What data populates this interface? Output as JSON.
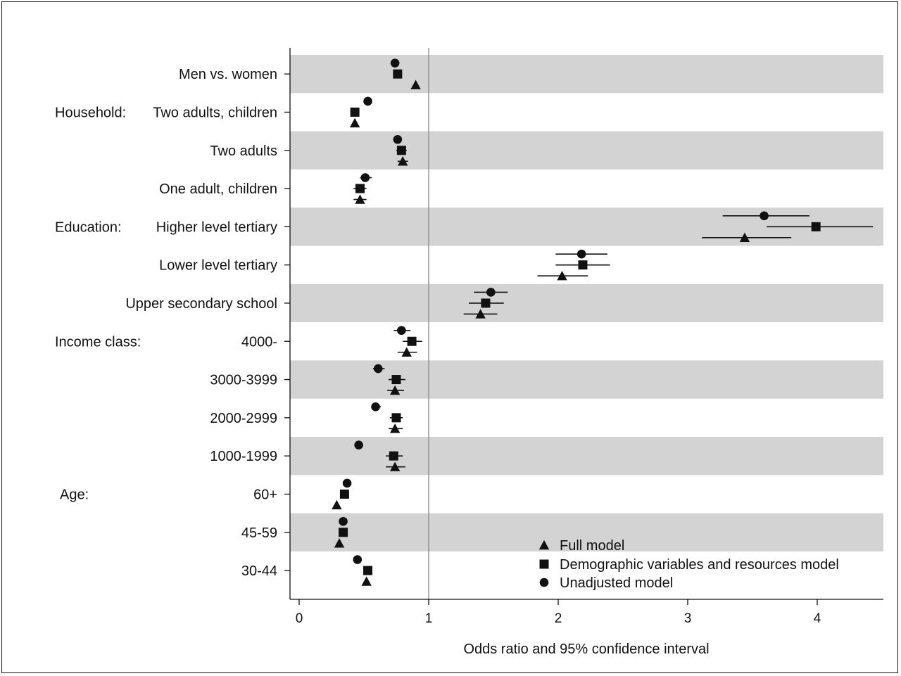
{
  "chart_data": {
    "type": "forest",
    "xlabel": "Odds ratio and 95% confidence interval",
    "xlim": [
      -0.07,
      4.5
    ],
    "xticks": [
      0,
      1,
      2,
      3,
      4
    ],
    "xtick_labels": [
      "0",
      "1",
      "2",
      "3",
      "4"
    ],
    "reference_line": 1,
    "alternating_row_shading": true,
    "shade_color": "#d3d3d3",
    "legend_placement": "bottom-right",
    "series": [
      {
        "name": "Full model",
        "marker": "triangle"
      },
      {
        "name": "Demographic variables and resources model",
        "marker": "square"
      },
      {
        "name": "Unadjusted model",
        "marker": "circle"
      }
    ],
    "rows": [
      {
        "group": "",
        "label": "Men vs. women",
        "shaded": true,
        "estimates": {
          "unadjusted": {
            "or": 0.74,
            "lo": 0.74,
            "hi": 0.74
          },
          "demographic": {
            "or": 0.76,
            "lo": 0.76,
            "hi": 0.76
          },
          "full": {
            "or": 0.9,
            "lo": 0.9,
            "hi": 0.9
          }
        }
      },
      {
        "group": "Household:",
        "label": "Two adults, children",
        "shaded": false,
        "estimates": {
          "unadjusted": {
            "or": 0.53,
            "lo": 0.53,
            "hi": 0.53
          },
          "demographic": {
            "or": 0.43,
            "lo": 0.43,
            "hi": 0.43
          },
          "full": {
            "or": 0.43,
            "lo": 0.43,
            "hi": 0.43
          }
        }
      },
      {
        "group": "",
        "label": "Two adults",
        "shaded": true,
        "estimates": {
          "unadjusted": {
            "or": 0.76,
            "lo": 0.76,
            "hi": 0.76
          },
          "demographic": {
            "or": 0.79,
            "lo": 0.75,
            "hi": 0.83
          },
          "full": {
            "or": 0.8,
            "lo": 0.76,
            "hi": 0.84
          }
        }
      },
      {
        "group": "",
        "label": "One adult, children",
        "shaded": false,
        "estimates": {
          "unadjusted": {
            "or": 0.51,
            "lo": 0.47,
            "hi": 0.56
          },
          "demographic": {
            "or": 0.47,
            "lo": 0.42,
            "hi": 0.52
          },
          "full": {
            "or": 0.47,
            "lo": 0.42,
            "hi": 0.52
          }
        }
      },
      {
        "group": "Education:",
        "label": "Higher level tertiary",
        "shaded": true,
        "estimates": {
          "unadjusted": {
            "or": 3.59,
            "lo": 3.27,
            "hi": 3.94
          },
          "demographic": {
            "or": 3.99,
            "lo": 3.61,
            "hi": 4.43
          },
          "full": {
            "or": 3.44,
            "lo": 3.11,
            "hi": 3.8
          }
        }
      },
      {
        "group": "",
        "label": "Lower level tertiary",
        "shaded": false,
        "estimates": {
          "unadjusted": {
            "or": 2.18,
            "lo": 1.98,
            "hi": 2.38
          },
          "demographic": {
            "or": 2.19,
            "lo": 1.98,
            "hi": 2.4
          },
          "full": {
            "or": 2.03,
            "lo": 1.84,
            "hi": 2.23
          }
        }
      },
      {
        "group": "",
        "label": "Upper secondary school",
        "shaded": true,
        "estimates": {
          "unadjusted": {
            "or": 1.48,
            "lo": 1.35,
            "hi": 1.61
          },
          "demographic": {
            "or": 1.44,
            "lo": 1.31,
            "hi": 1.58
          },
          "full": {
            "or": 1.4,
            "lo": 1.27,
            "hi": 1.53
          }
        }
      },
      {
        "group": "Income class:",
        "label": "4000-",
        "shaded": false,
        "estimates": {
          "unadjusted": {
            "or": 0.79,
            "lo": 0.73,
            "hi": 0.86
          },
          "demographic": {
            "or": 0.87,
            "lo": 0.8,
            "hi": 0.95
          },
          "full": {
            "or": 0.83,
            "lo": 0.76,
            "hi": 0.91
          }
        }
      },
      {
        "group": "",
        "label": "3000-3999",
        "shaded": true,
        "estimates": {
          "unadjusted": {
            "or": 0.61,
            "lo": 0.57,
            "hi": 0.66
          },
          "demographic": {
            "or": 0.75,
            "lo": 0.69,
            "hi": 0.82
          },
          "full": {
            "or": 0.74,
            "lo": 0.68,
            "hi": 0.81
          }
        }
      },
      {
        "group": "",
        "label": "2000-2999",
        "shaded": false,
        "estimates": {
          "unadjusted": {
            "or": 0.59,
            "lo": 0.56,
            "hi": 0.63
          },
          "demographic": {
            "or": 0.75,
            "lo": 0.7,
            "hi": 0.8
          },
          "full": {
            "or": 0.74,
            "lo": 0.69,
            "hi": 0.8
          }
        }
      },
      {
        "group": "",
        "label": "1000-1999",
        "shaded": true,
        "estimates": {
          "unadjusted": {
            "or": 0.46,
            "lo": 0.46,
            "hi": 0.46
          },
          "demographic": {
            "or": 0.73,
            "lo": 0.67,
            "hi": 0.8
          },
          "full": {
            "or": 0.74,
            "lo": 0.67,
            "hi": 0.82
          }
        }
      },
      {
        "group": "Age:",
        "label": "60+",
        "shaded": false,
        "estimates": {
          "unadjusted": {
            "or": 0.37,
            "lo": 0.37,
            "hi": 0.37
          },
          "demographic": {
            "or": 0.35,
            "lo": 0.35,
            "hi": 0.35
          },
          "full": {
            "or": 0.29,
            "lo": 0.29,
            "hi": 0.29
          }
        }
      },
      {
        "group": "",
        "label": "45-59",
        "shaded": true,
        "estimates": {
          "unadjusted": {
            "or": 0.34,
            "lo": 0.34,
            "hi": 0.34
          },
          "demographic": {
            "or": 0.34,
            "lo": 0.34,
            "hi": 0.34
          },
          "full": {
            "or": 0.31,
            "lo": 0.31,
            "hi": 0.31
          }
        }
      },
      {
        "group": "",
        "label": "30-44",
        "shaded": false,
        "estimates": {
          "unadjusted": {
            "or": 0.45,
            "lo": 0.45,
            "hi": 0.45
          },
          "demographic": {
            "or": 0.53,
            "lo": 0.53,
            "hi": 0.53
          },
          "full": {
            "or": 0.52,
            "lo": 0.52,
            "hi": 0.52
          }
        }
      }
    ]
  }
}
